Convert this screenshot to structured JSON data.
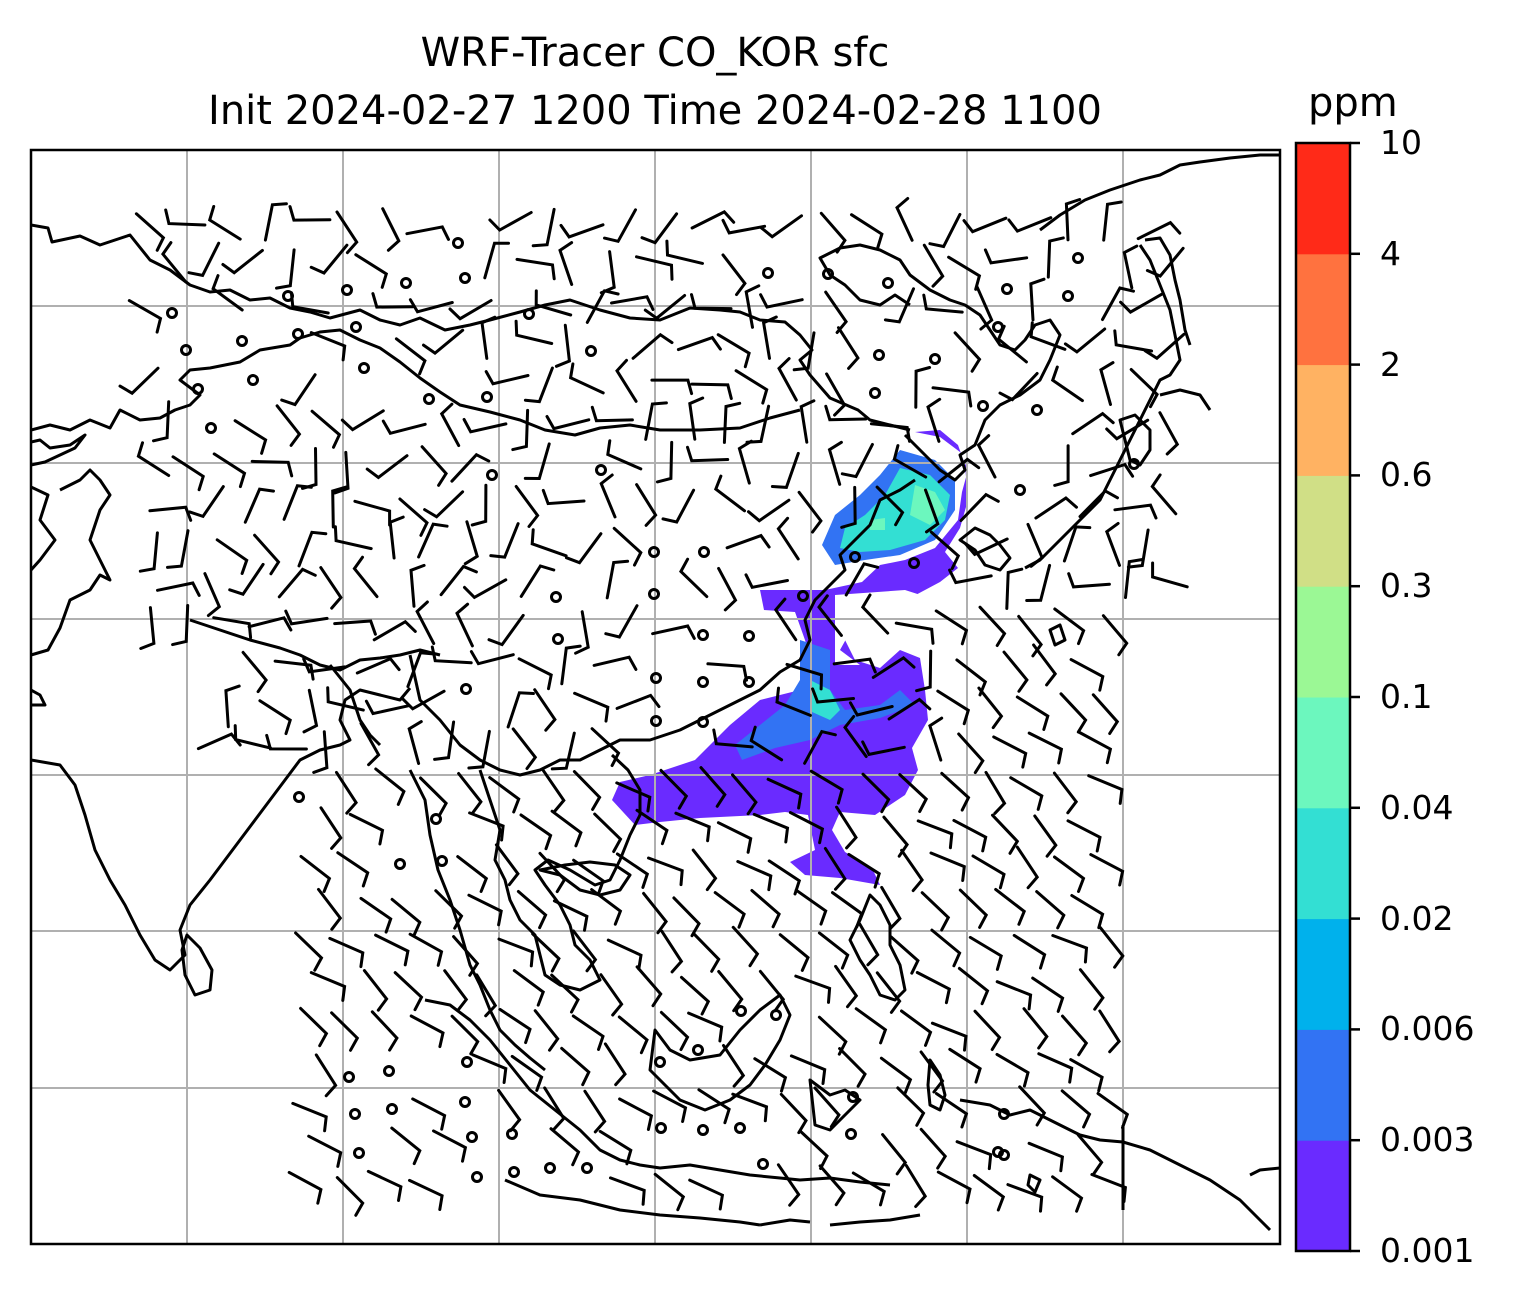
{
  "title": {
    "line1": "WRF-Tracer CO_KOR sfc",
    "line2": "Init 2024-02-27 1200 Time 2024-02-28 1100"
  },
  "colorbar": {
    "unit": "ppm",
    "levels": [
      "0.001",
      "0.003",
      "0.006",
      "0.02",
      "0.04",
      "0.1",
      "0.3",
      "0.6",
      "2",
      "4",
      "10"
    ],
    "colors": [
      "#6a2bff",
      "#3273f3",
      "#00b1ec",
      "#33dfd3",
      "#6cf7be",
      "#9bf895",
      "#d0df86",
      "#ffb262",
      "#ff723f",
      "#ff2a18"
    ]
  },
  "map": {
    "region": "East and Southeast Asia",
    "projection": "Mercator",
    "gridlines": true,
    "coastlines": true,
    "wind_barbs": true,
    "plume_color_high": "#33dfd3"
  }
}
